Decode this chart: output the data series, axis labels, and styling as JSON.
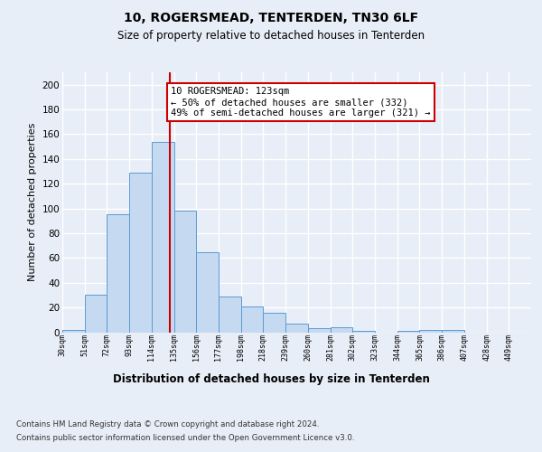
{
  "title_line1": "10, ROGERSMEAD, TENTERDEN, TN30 6LF",
  "title_line2": "Size of property relative to detached houses in Tenterden",
  "xlabel": "Distribution of detached houses by size in Tenterden",
  "ylabel": "Number of detached properties",
  "bar_values": [
    2,
    30,
    95,
    129,
    154,
    98,
    65,
    29,
    21,
    16,
    7,
    3,
    4,
    1,
    0,
    1,
    2,
    2
  ],
  "bin_labels": [
    "30sqm",
    "51sqm",
    "72sqm",
    "93sqm",
    "114sqm",
    "135sqm",
    "156sqm",
    "177sqm",
    "198sqm",
    "218sqm",
    "239sqm",
    "260sqm",
    "281sqm",
    "302sqm",
    "323sqm",
    "344sqm",
    "365sqm",
    "386sqm",
    "407sqm",
    "428sqm",
    "449sqm"
  ],
  "bar_color": "#c5d9f1",
  "bar_edge_color": "#5b9bd5",
  "vline_color": "#cc0000",
  "annotation_text": "10 ROGERSMEAD: 123sqm\n← 50% of detached houses are smaller (332)\n49% of semi-detached houses are larger (321) →",
  "annotation_box_color": "#ffffff",
  "annotation_border_color": "#cc0000",
  "ylim": [
    0,
    210
  ],
  "yticks": [
    0,
    20,
    40,
    60,
    80,
    100,
    120,
    140,
    160,
    180,
    200
  ],
  "footer_line1": "Contains HM Land Registry data © Crown copyright and database right 2024.",
  "footer_line2": "Contains public sector information licensed under the Open Government Licence v3.0.",
  "bg_color": "#e8eef7",
  "grid_color": "#ffffff",
  "vline_bar_index": 4
}
